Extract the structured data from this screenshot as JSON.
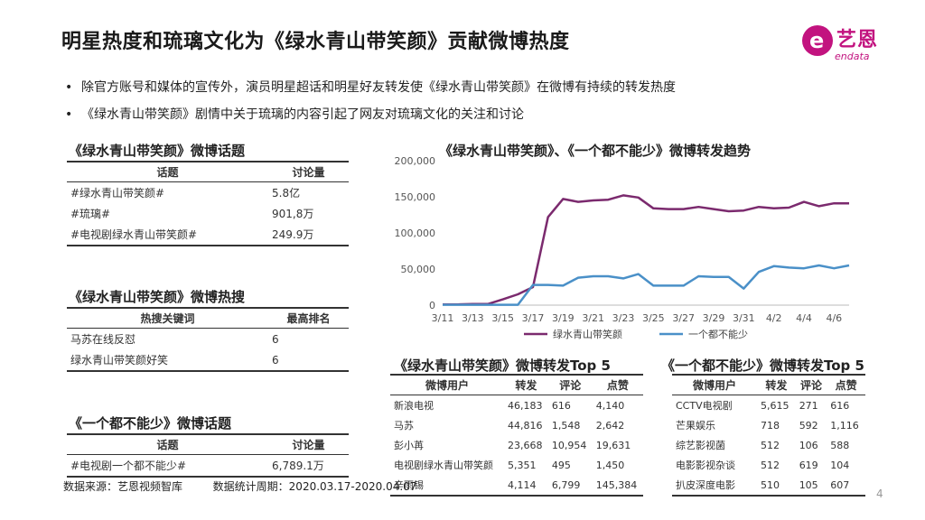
{
  "title": "明星热度和琉璃文化为《绿水青山带笑颜》贡献微博热度",
  "logo": {
    "cn": "艺恩",
    "en": "endata",
    "icon_letter": "e",
    "brand_color": "#c2137f"
  },
  "bullets": [
    "除官方账号和媒体的宣传外，演员明星超话和明星好友转发使《绿水青山带笑颜》在微博有持续的转发热度",
    "《绿水青山带笑颜》剧情中关于琉璃的内容引起了网友对琉璃文化的关注和讨论"
  ],
  "topics_table": {
    "title": "《绿水青山带笑颜》微博话题",
    "headers": [
      "话题",
      "讨论量"
    ],
    "rows": [
      [
        "#绿水青山带笑颜#",
        "5.8亿"
      ],
      [
        "#琉璃#",
        "901,8万"
      ],
      [
        "#电视剧绿水青山带笑颜#",
        "249.9万"
      ]
    ]
  },
  "hot_search_table": {
    "title": "《绿水青山带笑颜》微博热搜",
    "headers": [
      "热搜关键词",
      "最高排名"
    ],
    "rows": [
      [
        "马苏在线反怼",
        "6"
      ],
      [
        "绿水青山带笑颜好笑",
        "6"
      ]
    ]
  },
  "other_topics_table": {
    "title": "《一个都不能少》微博话题",
    "headers": [
      "话题",
      "讨论量"
    ],
    "rows": [
      [
        "#电视剧一个都不能少#",
        "6,789.1万"
      ]
    ]
  },
  "repost_top5_a": {
    "title": "《绿水青山带笑颜》微博转发Top 5",
    "headers": [
      "微博用户",
      "转发",
      "评论",
      "点赞"
    ],
    "rows": [
      [
        "新浪电视",
        "46,183",
        "616",
        "4,140"
      ],
      [
        "马苏",
        "44,816",
        "1,548",
        "2,642"
      ],
      [
        "彭小苒",
        "23,668",
        "10,954",
        "19,631"
      ],
      [
        "电视剧绿水青山带笑颜",
        "5,351",
        "495",
        "1,450"
      ],
      [
        "辛雨锡",
        "4,114",
        "6,799",
        "145,384"
      ]
    ]
  },
  "repost_top5_b": {
    "title": "《一个都不能少》微博转发Top 5",
    "headers": [
      "微博用户",
      "转发",
      "评论",
      "点赞"
    ],
    "rows": [
      [
        "CCTV电视剧",
        "5,615",
        "271",
        "616"
      ],
      [
        "芒果娱乐",
        "718",
        "592",
        "1,116"
      ],
      [
        "综艺影视菌",
        "512",
        "106",
        "588"
      ],
      [
        "电影影视杂谈",
        "512",
        "619",
        "104"
      ],
      [
        "扒皮深度电影",
        "510",
        "105",
        "607"
      ]
    ]
  },
  "chart_data": {
    "type": "line",
    "title": "《绿水青山带笑颜》、《一个都不能少》微博转发趋势",
    "x": [
      "3/11",
      "3/12",
      "3/13",
      "3/14",
      "3/15",
      "3/16",
      "3/17",
      "3/18",
      "3/19",
      "3/20",
      "3/21",
      "3/22",
      "3/23",
      "3/24",
      "3/25",
      "3/26",
      "3/27",
      "3/28",
      "3/29",
      "3/30",
      "3/31",
      "4/1",
      "4/2",
      "4/3",
      "4/4",
      "4/5",
      "4/6",
      "4/7"
    ],
    "x_tick_labels": [
      "3/11",
      "3/13",
      "3/15",
      "3/17",
      "3/19",
      "3/21",
      "3/23",
      "3/25",
      "3/27",
      "3/29",
      "3/31",
      "4/2",
      "4/4",
      "4/6"
    ],
    "ylim": [
      0,
      200000
    ],
    "y_ticks": [
      "0",
      "50,000",
      "100,000",
      "150,000",
      "200,000"
    ],
    "y_tick_values": [
      0,
      50000,
      100000,
      150000,
      200000
    ],
    "series": [
      {
        "name": "绿水青山带笑颜",
        "color": "#7b2a6e",
        "values": [
          1000,
          1000,
          1500,
          1500,
          8000,
          15000,
          25000,
          122000,
          147000,
          143000,
          145000,
          146000,
          152000,
          149000,
          134000,
          133000,
          133000,
          136000,
          133000,
          130000,
          131000,
          136000,
          134000,
          135000,
          143000,
          137000,
          141000,
          141000
        ]
      },
      {
        "name": "一个都不能少",
        "color": "#4a90c8",
        "values": [
          500,
          500,
          500,
          500,
          500,
          500,
          28000,
          28000,
          27000,
          38000,
          40000,
          40000,
          37000,
          43000,
          27000,
          27000,
          27000,
          40000,
          39000,
          39000,
          23000,
          46000,
          54000,
          52000,
          51000,
          55000,
          51000,
          55000
        ]
      }
    ],
    "legend_position": "bottom"
  },
  "footer": {
    "source": "数据来源：艺恩视频智库",
    "period": "数据统计周期：2020.03.17-2020.04.07"
  },
  "page_number": "4"
}
